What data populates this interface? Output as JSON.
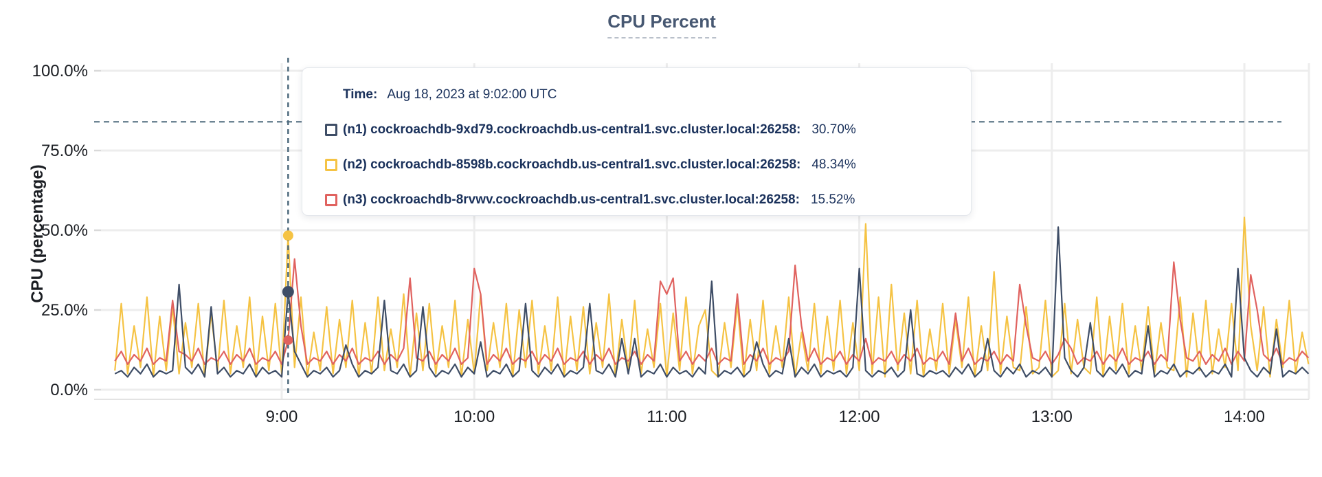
{
  "title": {
    "text": "CPU Percent"
  },
  "colors": {
    "n1": "#3e4d66",
    "n2": "#f5c344",
    "n3": "#e0625f",
    "grid": "#ededed",
    "axis_line": "#e3e3e3",
    "tick_nub": "#d9d9d9",
    "dashed_guide": "#4e6a7d",
    "title_text": "#475872",
    "title_underline": "#b9c0ca",
    "axis_text": "#1b1e23",
    "tooltip_text": "#1a315b",
    "tooltip_border": "#e4e7ec"
  },
  "y_axis": {
    "title": "CPU (percentage)",
    "tick_labels": [
      "100.0%",
      "75.0%",
      "50.0%",
      "25.0%",
      "0.0%"
    ],
    "tick_values": [
      100,
      75,
      50,
      25,
      0
    ]
  },
  "x_axis": {
    "tick_labels": [
      "9:00",
      "10:00",
      "11:00",
      "12:00",
      "13:00",
      "14:00"
    ],
    "tick_minutes": [
      0,
      60,
      120,
      180,
      240,
      300
    ]
  },
  "tooltip": {
    "time_label": "Time:",
    "time_value": "Aug 18, 2023 at 9:02:00 UTC",
    "rows": [
      {
        "id": "n1",
        "label": "(n1) cockroachdb-9xd79.cockroachdb.us-central1.svc.cluster.local:26258:",
        "value": "30.70%",
        "color": "#3e4d66"
      },
      {
        "id": "n2",
        "label": "(n2) cockroachdb-8598b.cockroachdb.us-central1.svc.cluster.local:26258:",
        "value": "48.34%",
        "color": "#f5c344"
      },
      {
        "id": "n3",
        "label": "(n3) cockroachdb-8rvwv.cockroachdb.us-central1.svc.cluster.local:26258:",
        "value": "15.52%",
        "color": "#e0625f"
      }
    ]
  },
  "chart_data": {
    "type": "line",
    "title": "CPU Percent",
    "ylabel": "CPU (percentage)",
    "ylim": [
      0,
      100
    ],
    "grid": true,
    "x_axis_unit": "minutes relative to 9:00 UTC, Aug 18 2023",
    "x_start_minute": -52,
    "x_step_minutes": 2,
    "x_tick_minutes": [
      0,
      60,
      120,
      180,
      240,
      300
    ],
    "x_tick_labels": [
      "9:00",
      "10:00",
      "11:00",
      "12:00",
      "13:00",
      "14:00"
    ],
    "threshold_dashed_line_pct": 84,
    "crosshair": {
      "minute": 2,
      "time": "Aug 18, 2023 at 9:02:00 UTC",
      "values": {
        "n1": 30.7,
        "n2": 48.34,
        "n3": 15.52
      }
    },
    "series": [
      {
        "id": "n1",
        "name": "(n1) cockroachdb-9xd79.cockroachdb.us-central1.svc.cluster.local:26258",
        "color": "#3e4d66",
        "values": [
          5,
          6,
          4,
          7,
          5,
          8,
          4,
          6,
          5,
          6,
          33,
          7,
          5,
          8,
          4,
          26,
          5,
          7,
          4,
          6,
          5,
          8,
          4,
          7,
          5,
          6,
          4,
          30.7,
          12,
          8,
          4,
          6,
          5,
          7,
          4,
          6,
          14,
          8,
          4,
          6,
          5,
          7,
          28,
          6,
          5,
          8,
          4,
          6,
          26,
          7,
          4,
          6,
          5,
          8,
          4,
          7,
          5,
          15,
          4,
          6,
          5,
          8,
          4,
          6,
          27,
          6,
          4,
          7,
          5,
          8,
          4,
          6,
          5,
          7,
          27,
          6,
          5,
          8,
          4,
          16,
          5,
          16,
          4,
          6,
          5,
          8,
          4,
          7,
          5,
          6,
          4,
          7,
          5,
          34,
          4,
          6,
          5,
          7,
          4,
          6,
          15,
          8,
          4,
          6,
          5,
          16,
          4,
          7,
          5,
          8,
          4,
          6,
          5,
          6,
          4,
          7,
          38,
          6,
          4,
          6,
          5,
          7,
          4,
          6,
          25,
          5,
          4,
          6,
          5,
          6,
          4,
          7,
          5,
          8,
          4,
          6,
          16,
          6,
          4,
          7,
          5,
          8,
          4,
          6,
          5,
          7,
          4,
          51,
          10,
          6,
          4,
          7,
          21,
          6,
          4,
          7,
          5,
          8,
          4,
          6,
          5,
          20,
          4,
          6,
          5,
          8,
          4,
          6,
          5,
          7,
          4,
          6,
          5,
          8,
          4,
          38,
          10,
          6,
          4,
          7,
          5,
          19,
          4,
          6,
          5,
          7,
          5
        ]
      },
      {
        "id": "n2",
        "name": "(n2) cockroachdb-8598b.cockroachdb.us-central1.svc.cluster.local:26258",
        "color": "#f5c344",
        "values": [
          6,
          27,
          5,
          20,
          7,
          29,
          4,
          23,
          6,
          26,
          5,
          21,
          7,
          27,
          4,
          24,
          6,
          28,
          5,
          20,
          7,
          29,
          4,
          23,
          6,
          27,
          5,
          48.34,
          7,
          29,
          4,
          18,
          6,
          26,
          5,
          22,
          7,
          28,
          4,
          21,
          5,
          29,
          6,
          19,
          7,
          30,
          4,
          24,
          6,
          27,
          5,
          20,
          7,
          28,
          4,
          22,
          5,
          30,
          6,
          21,
          7,
          27,
          4,
          25,
          7,
          28,
          5,
          20,
          6,
          29,
          4,
          23,
          6,
          26,
          5,
          21,
          7,
          30,
          4,
          22,
          6,
          28,
          5,
          19,
          7,
          27,
          4,
          24,
          6,
          29,
          5,
          20,
          25,
          6,
          4,
          21,
          7,
          27,
          4,
          22,
          6,
          28,
          5,
          20,
          7,
          29,
          4,
          18,
          6,
          27,
          5,
          23,
          6,
          28,
          5,
          21,
          6,
          52,
          5,
          29,
          4,
          33,
          6,
          24,
          5,
          28,
          4,
          19,
          6,
          27,
          5,
          22,
          7,
          29,
          4,
          20,
          6,
          37,
          5,
          23,
          7,
          6,
          26,
          5,
          7,
          28,
          4,
          6,
          27,
          5,
          22,
          7,
          5,
          29,
          4,
          23,
          6,
          27,
          5,
          20,
          6,
          26,
          5,
          21,
          7,
          6,
          29,
          4,
          24,
          6,
          28,
          5,
          19,
          7,
          27,
          6,
          54,
          20,
          6,
          26,
          4,
          22,
          7,
          28,
          5,
          18,
          8
        ]
      },
      {
        "id": "n3",
        "name": "(n3) cockroachdb-8rvwv.cockroachdb.us-central1.svc.cluster.local:26258",
        "color": "#e0625f",
        "values": [
          9,
          12,
          8,
          11,
          9,
          13,
          8,
          10,
          9,
          28,
          12,
          11,
          9,
          13,
          8,
          10,
          9,
          12,
          8,
          11,
          9,
          13,
          8,
          10,
          9,
          12,
          8,
          15.52,
          41,
          20,
          8,
          10,
          9,
          12,
          8,
          11,
          9,
          13,
          8,
          10,
          9,
          12,
          8,
          11,
          9,
          13,
          35,
          10,
          9,
          12,
          8,
          11,
          9,
          13,
          8,
          10,
          38,
          30,
          8,
          11,
          9,
          13,
          8,
          10,
          9,
          12,
          8,
          11,
          9,
          13,
          8,
          10,
          9,
          12,
          8,
          11,
          9,
          13,
          8,
          10,
          9,
          12,
          8,
          11,
          9,
          34,
          30,
          35,
          9,
          12,
          8,
          11,
          9,
          13,
          8,
          10,
          9,
          30,
          8,
          11,
          9,
          13,
          8,
          10,
          9,
          12,
          39,
          20,
          9,
          13,
          8,
          10,
          9,
          12,
          8,
          11,
          9,
          16,
          8,
          10,
          9,
          12,
          8,
          11,
          9,
          13,
          8,
          10,
          9,
          12,
          8,
          24,
          9,
          13,
          8,
          10,
          9,
          12,
          8,
          11,
          9,
          33,
          20,
          10,
          9,
          12,
          8,
          11,
          16,
          13,
          8,
          10,
          9,
          12,
          8,
          11,
          9,
          13,
          8,
          10,
          9,
          12,
          8,
          11,
          9,
          40,
          22,
          10,
          9,
          12,
          8,
          11,
          9,
          13,
          8,
          12,
          9,
          36,
          25,
          11,
          9,
          13,
          8,
          10,
          9,
          12,
          10
        ]
      }
    ]
  }
}
